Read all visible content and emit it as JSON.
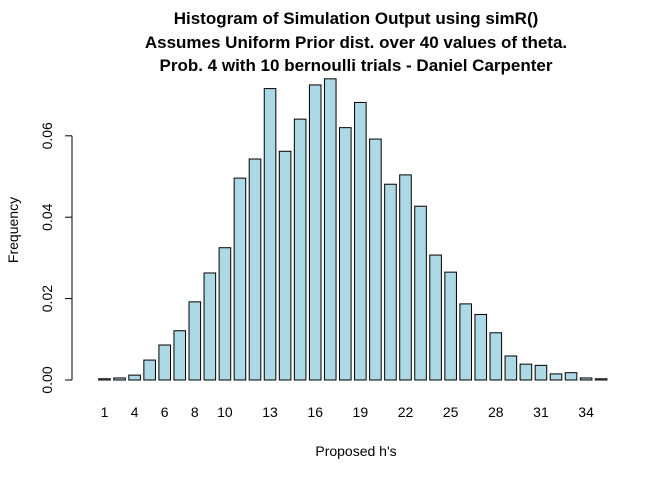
{
  "chart_data": {
    "type": "bar",
    "title": [
      "Histogram of Simulation Output using simR()",
      "Assumes Uniform Prior dist. over  40  values of theta.",
      "Prob.  4  with  10 bernoulli trials - Daniel Carpenter"
    ],
    "xlabel": "Proposed h's",
    "ylabel": "Frequency",
    "ylim": [
      0,
      0.07
    ],
    "y_ticks": [
      0.0,
      0.02,
      0.04,
      0.06
    ],
    "y_tick_labels": [
      "0.00",
      "0.02",
      "0.04",
      "0.06"
    ],
    "x_tick_labels": [
      {
        "bar": 1,
        "label": "1"
      },
      {
        "bar": 3,
        "label": "4"
      },
      {
        "bar": 5,
        "label": "6"
      },
      {
        "bar": 7,
        "label": "8"
      },
      {
        "bar": 9,
        "label": "10"
      },
      {
        "bar": 12,
        "label": "13"
      },
      {
        "bar": 15,
        "label": "16"
      },
      {
        "bar": 18,
        "label": "19"
      },
      {
        "bar": 21,
        "label": "22"
      },
      {
        "bar": 24,
        "label": "25"
      },
      {
        "bar": 27,
        "label": "28"
      },
      {
        "bar": 30,
        "label": "31"
      },
      {
        "bar": 33,
        "label": "34"
      }
    ],
    "values": [
      0.0003,
      0.0005,
      0.0012,
      0.0049,
      0.0086,
      0.0121,
      0.0192,
      0.0263,
      0.0325,
      0.0496,
      0.0543,
      0.0716,
      0.0562,
      0.0641,
      0.0725,
      0.074,
      0.062,
      0.0682,
      0.0592,
      0.0481,
      0.0504,
      0.0427,
      0.0307,
      0.0265,
      0.0187,
      0.0161,
      0.0116,
      0.0059,
      0.0039,
      0.0036,
      0.0015,
      0.0018,
      0.0005,
      0.0003
    ],
    "colors": {
      "bar_fill": "#add8e6",
      "bar_stroke": "#000000"
    }
  }
}
